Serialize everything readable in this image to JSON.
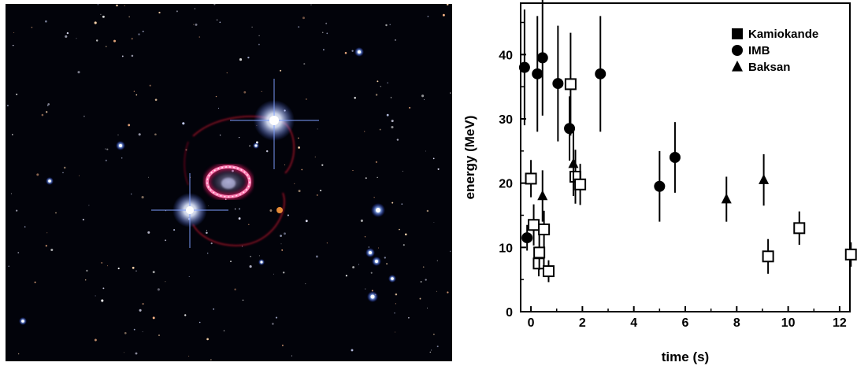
{
  "photo": {
    "description_icon": "supernova-ring-image"
  },
  "chart_data": {
    "type": "scatter",
    "xlabel": "time (s)",
    "ylabel": "energy (MeV)",
    "xlim": [
      -0.4,
      12.4
    ],
    "ylim": [
      0,
      48
    ],
    "xticks": [
      0,
      2,
      4,
      6,
      8,
      10,
      12
    ],
    "yticks": [
      0,
      10,
      20,
      30,
      40
    ],
    "legend_position": "top-right",
    "series": [
      {
        "name": "Kamiokande",
        "marker": "open-square",
        "legend_marker": "filled-square",
        "points": [
          {
            "x": 0.0,
            "y": 20.7,
            "err": 2.9
          },
          {
            "x": 0.107,
            "y": 13.5,
            "err": 3.2
          },
          {
            "x": 0.303,
            "y": 7.5,
            "err": 2.0
          },
          {
            "x": 0.324,
            "y": 9.2,
            "err": 2.7
          },
          {
            "x": 0.507,
            "y": 12.8,
            "err": 2.9
          },
          {
            "x": 0.686,
            "y": 6.3,
            "err": 1.7
          },
          {
            "x": 1.541,
            "y": 35.4,
            "err": 8.0
          },
          {
            "x": 1.728,
            "y": 21.0,
            "err": 4.2
          },
          {
            "x": 1.915,
            "y": 19.8,
            "err": 3.2
          },
          {
            "x": 9.219,
            "y": 8.6,
            "err": 2.7
          },
          {
            "x": 10.433,
            "y": 13.0,
            "err": 2.6
          },
          {
            "x": 12.439,
            "y": 8.9,
            "err": 1.9
          }
        ]
      },
      {
        "name": "IMB",
        "marker": "filled-circle",
        "legend_marker": "filled-circle",
        "points": [
          {
            "x": -0.25,
            "y": 38.0,
            "err": 9.0
          },
          {
            "x": -0.15,
            "y": 11.5,
            "err": 2.0
          },
          {
            "x": 0.25,
            "y": 37.0,
            "err": 9.0
          },
          {
            "x": 0.45,
            "y": 39.5,
            "err": 9.0
          },
          {
            "x": 1.05,
            "y": 35.5,
            "err": 9.0
          },
          {
            "x": 1.5,
            "y": 28.5,
            "err": 5.0
          },
          {
            "x": 2.7,
            "y": 37.0,
            "err": 9.0
          },
          {
            "x": 5.0,
            "y": 19.5,
            "err": 5.5
          },
          {
            "x": 5.6,
            "y": 24.0,
            "err": 5.5
          }
        ]
      },
      {
        "name": "Baksan",
        "marker": "filled-triangle",
        "legend_marker": "filled-triangle",
        "points": [
          {
            "x": 0.45,
            "y": 18.0,
            "err": 4.0
          },
          {
            "x": 1.65,
            "y": 23.0,
            "err": 5.0
          },
          {
            "x": 7.6,
            "y": 17.5,
            "err": 3.5
          },
          {
            "x": 9.05,
            "y": 20.5,
            "err": 4.0
          }
        ]
      }
    ]
  }
}
